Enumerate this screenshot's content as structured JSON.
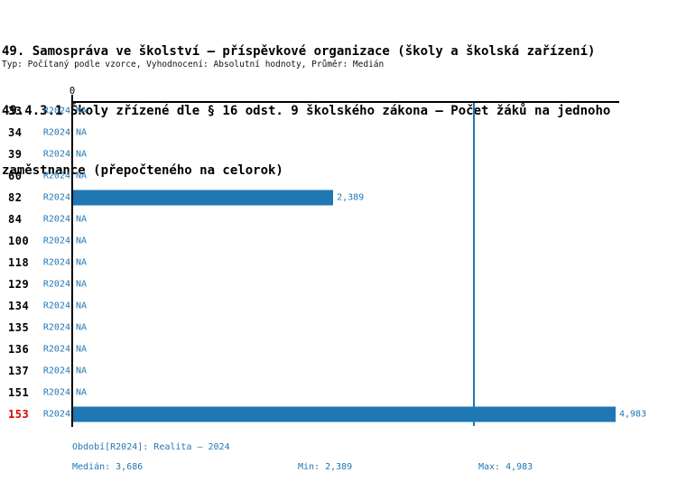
{
  "header": {
    "line1": "49. Samospráva ve školství – příspěvkové organizace (školy a školská zařízení)",
    "line2": "49.4.3.1 Školy zřízené dle § 16 odst. 9 školského zákona – Počet žáků na jednoho",
    "line3": "zaměstnance (přepočteného na celorok)",
    "subtitle": "Typ: Počítaný podle vzorce, Vyhodnocení: Absolutní hodnoty, Průměr: Medián"
  },
  "axis": {
    "zero_label": "0"
  },
  "colors": {
    "bar_blue": "#1f77b4",
    "text_blue": "#1f77b4",
    "highlight_red": "#e00000",
    "axis_black": "#000000"
  },
  "footer": {
    "period": "Období[R2024]: Realita – 2024",
    "median": "Medián: 3,686",
    "min": "Min: 2,389",
    "max": "Max: 4,983"
  },
  "chart_data": {
    "type": "bar",
    "orientation": "horizontal",
    "title": "49.4.3.1 Školy zřízené dle § 16 odst. 9 školského zákona – Počet žáků na jednoho zaměstnance (přepočteného na celorok)",
    "xlabel": "",
    "ylabel": "",
    "xlim": [
      0,
      4983
    ],
    "grid": false,
    "legend": false,
    "series_name": "R2024",
    "median_value": 3686,
    "min_value": 2389,
    "max_value": 4983,
    "categories": [
      "33",
      "34",
      "39",
      "60",
      "82",
      "84",
      "100",
      "118",
      "129",
      "134",
      "135",
      "136",
      "137",
      "151",
      "153"
    ],
    "values": [
      null,
      null,
      null,
      null,
      2389,
      null,
      null,
      null,
      null,
      null,
      null,
      null,
      null,
      null,
      4983
    ],
    "rows": [
      {
        "id": "33",
        "period": "R2024",
        "value": null,
        "display": "NA",
        "highlight": false
      },
      {
        "id": "34",
        "period": "R2024",
        "value": null,
        "display": "NA",
        "highlight": false
      },
      {
        "id": "39",
        "period": "R2024",
        "value": null,
        "display": "NA",
        "highlight": false
      },
      {
        "id": "60",
        "period": "R2024",
        "value": null,
        "display": "NA",
        "highlight": false
      },
      {
        "id": "82",
        "period": "R2024",
        "value": 2389,
        "display": "2,389",
        "highlight": false
      },
      {
        "id": "84",
        "period": "R2024",
        "value": null,
        "display": "NA",
        "highlight": false
      },
      {
        "id": "100",
        "period": "R2024",
        "value": null,
        "display": "NA",
        "highlight": false
      },
      {
        "id": "118",
        "period": "R2024",
        "value": null,
        "display": "NA",
        "highlight": false
      },
      {
        "id": "129",
        "period": "R2024",
        "value": null,
        "display": "NA",
        "highlight": false
      },
      {
        "id": "134",
        "period": "R2024",
        "value": null,
        "display": "NA",
        "highlight": false
      },
      {
        "id": "135",
        "period": "R2024",
        "value": null,
        "display": "NA",
        "highlight": false
      },
      {
        "id": "136",
        "period": "R2024",
        "value": null,
        "display": "NA",
        "highlight": false
      },
      {
        "id": "137",
        "period": "R2024",
        "value": null,
        "display": "NA",
        "highlight": false
      },
      {
        "id": "151",
        "period": "R2024",
        "value": null,
        "display": "NA",
        "highlight": false
      },
      {
        "id": "153",
        "period": "R2024",
        "value": 4983,
        "display": "4,983",
        "highlight": true
      }
    ]
  }
}
